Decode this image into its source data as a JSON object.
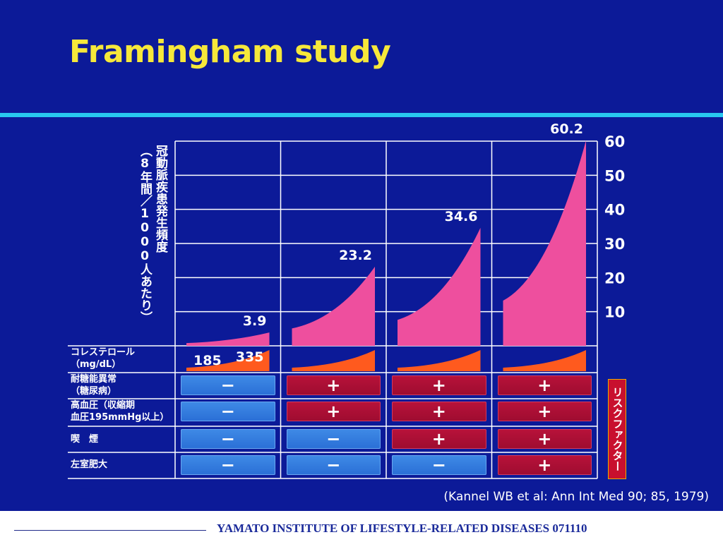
{
  "slide": {
    "title": "Framingham study",
    "y_axis_label_line1": "冠動脈疾患発生頻度",
    "y_axis_label_line2": "（8年間／1000人あたり）",
    "row_labels": [
      {
        "line1": "コレステロール",
        "line2": "（mg/dL）"
      },
      {
        "line1": "耐糖能異常",
        "line2": "（糖尿病）"
      },
      {
        "line1": "高血圧（収縮期",
        "line2": "血圧195mmHg以上）"
      },
      {
        "line1": "喫　煙",
        "line2": ""
      },
      {
        "line1": "左室肥大",
        "line2": ""
      }
    ],
    "risk_factor_label": "リスクファクター",
    "citation": "(Kannel WB et al: Ann Int Med 90; 85, 1979)",
    "footer": "YAMATO INSTITUTE OF LIFESTYLE-RELATED DISEASES  071110"
  },
  "colors": {
    "background": "#0c1a98",
    "title": "#f6e83a",
    "rule": "#28c8f0",
    "incidence_area": "#ee4f9e",
    "cholesterol_area": "#ff5a1e",
    "minus_cell": "#2a6fd6",
    "plus_cell": "#a80e34"
  },
  "chart_data": {
    "type": "area",
    "title": "Framingham study",
    "ylabel": "冠動脈疾患発生頻度（8年間／1000人あたり）",
    "xlabel": "",
    "ylim": [
      0,
      60
    ],
    "yticks": [
      10,
      20,
      30,
      40,
      50,
      60
    ],
    "grid": true,
    "tick_position": "right",
    "groups": 4,
    "peak_values": [
      "3.9",
      "23.2",
      "34.6",
      "60.2"
    ],
    "cholesterol_range_labels": [
      "185",
      "335"
    ],
    "risk_factors": [
      {
        "name": "耐糖能異常",
        "values": [
          "−",
          "+",
          "+",
          "+"
        ]
      },
      {
        "name": "高血圧",
        "values": [
          "−",
          "+",
          "+",
          "+"
        ]
      },
      {
        "name": "喫煙",
        "values": [
          "−",
          "−",
          "+",
          "+"
        ]
      },
      {
        "name": "左室肥大",
        "values": [
          "−",
          "−",
          "−",
          "+"
        ]
      }
    ]
  }
}
